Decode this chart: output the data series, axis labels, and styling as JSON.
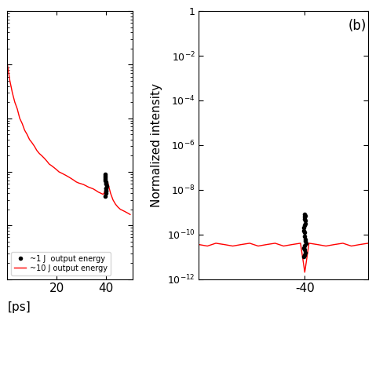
{
  "panel_a": {
    "red_line_x": [
      0,
      1,
      2,
      3,
      4,
      5,
      6,
      7,
      8,
      9,
      10,
      11,
      12,
      13,
      14,
      15,
      16,
      17,
      18,
      19,
      20,
      21,
      22,
      23,
      24,
      25,
      26,
      27,
      28,
      29,
      30,
      31,
      32,
      33,
      34,
      35,
      36,
      37,
      38,
      39,
      40,
      41,
      42,
      43,
      44,
      45,
      46,
      47,
      48,
      49,
      50
    ],
    "red_line_y": [
      0.0001,
      5e-05,
      3e-05,
      2e-05,
      1.5e-05,
      1e-05,
      8e-06,
      6e-06,
      5e-06,
      4e-06,
      3.5e-06,
      3e-06,
      2.5e-06,
      2.2e-06,
      2e-06,
      1.8e-06,
      1.6e-06,
      1.4e-06,
      1.3e-06,
      1.2e-06,
      1.1e-06,
      1e-06,
      9.5e-07,
      9e-07,
      8.5e-07,
      8e-07,
      7.5e-07,
      7e-07,
      6.5e-07,
      6.2e-07,
      6e-07,
      5.8e-07,
      5.5e-07,
      5.2e-07,
      5e-07,
      4.8e-07,
      4.5e-07,
      4.2e-07,
      4e-07,
      3.8e-07,
      4.5e-07,
      6e-07,
      4e-07,
      3e-07,
      2.5e-07,
      2.2e-07,
      2e-07,
      1.9e-07,
      1.8e-07,
      1.7e-07,
      1.6e-07
    ],
    "dots_x": [
      40.0,
      40.1,
      39.9,
      40.2,
      39.8,
      40.3,
      39.7,
      40.1,
      40.0,
      39.9,
      40.2,
      39.8,
      40.1,
      40.0,
      39.9
    ],
    "dots_y": [
      6e-07,
      5e-07,
      7e-07,
      4.5e-07,
      8e-07,
      5.5e-07,
      9e-07,
      4e-07,
      6.5e-07,
      7.5e-07,
      5e-07,
      8.5e-07,
      4.5e-07,
      6e-07,
      3.5e-07
    ],
    "xlim": [
      0,
      51
    ],
    "ylim": [
      1e-08,
      0.001
    ],
    "xticks": [
      20,
      40
    ],
    "legend_entries": [
      "~1 J  output energy",
      "~10 J output energy"
    ]
  },
  "panel_b": {
    "red_line_x": [
      -65,
      -63,
      -61,
      -59,
      -57,
      -55,
      -53,
      -51,
      -49,
      -47,
      -45,
      -43,
      -41,
      -40,
      -39,
      -37,
      -35,
      -33,
      -31,
      -29,
      -27,
      -25
    ],
    "red_line_y": [
      3.5e-11,
      3e-11,
      4e-11,
      3.5e-11,
      3e-11,
      3.5e-11,
      4e-11,
      3e-11,
      3.5e-11,
      4e-11,
      3e-11,
      3.5e-11,
      4e-11,
      2e-12,
      4e-11,
      3.5e-11,
      3e-11,
      3.5e-11,
      4e-11,
      3e-11,
      3.5e-11,
      4e-11
    ],
    "dots_x": [
      -40.0,
      -40.1,
      -39.9,
      -40.2,
      -39.8,
      -40.3,
      -39.7,
      -40.1,
      -40.0,
      -39.9,
      -40.2,
      -39.8,
      -40.1,
      -40.0,
      -39.9,
      -40.0,
      -40.1,
      -39.9,
      -40.2,
      -40.0
    ],
    "dots_y": [
      8e-11,
      1.2e-10,
      6e-11,
      1.5e-10,
      5e-11,
      2e-10,
      4e-11,
      2.5e-10,
      3e-11,
      3e-10,
      2.5e-11,
      4e-10,
      2e-11,
      5e-10,
      1.5e-11,
      6e-10,
      1.2e-11,
      7e-10,
      1e-11,
      8e-10
    ],
    "xlim": [
      -65,
      -25
    ],
    "ylim": [
      1e-12,
      1
    ],
    "xticks": [
      -40
    ],
    "ylabel": "Normalized intensity"
  },
  "bg_color": "#ffffff",
  "line_color": "#ff0000",
  "dot_color": "#000000",
  "xlabel": "[ps]"
}
